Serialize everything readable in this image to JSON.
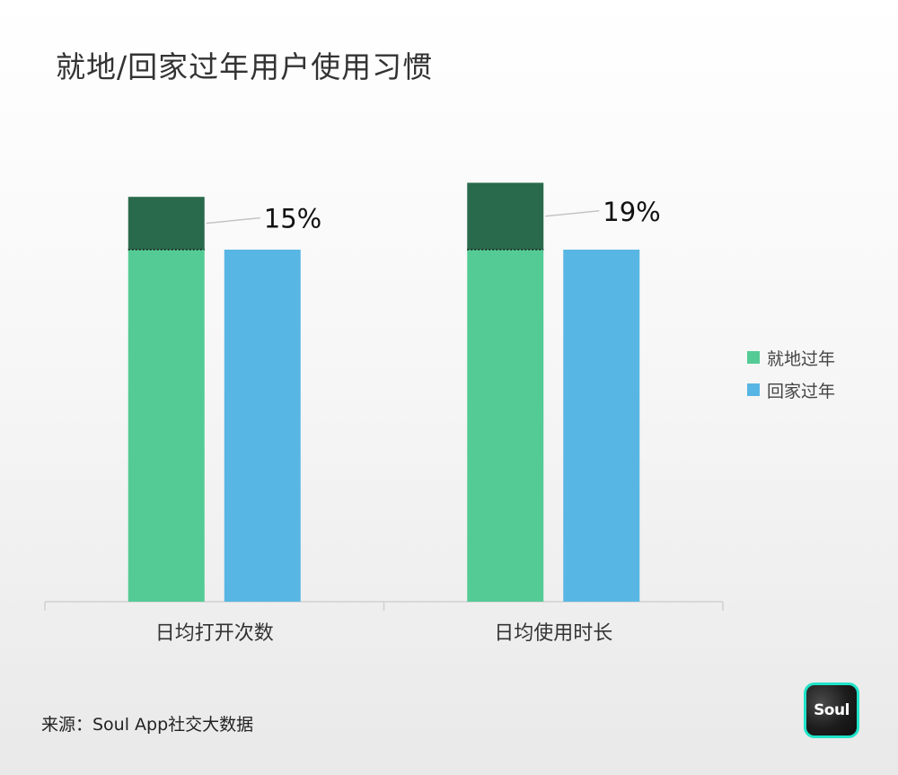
{
  "title": "就地/回家过年用户使用习惯",
  "chart_data": {
    "type": "bar",
    "categories": [
      "日均打开次数",
      "日均使用时长"
    ],
    "series": [
      {
        "name": "就地过年",
        "values": [
          115,
          119
        ],
        "color": "#54cb95"
      },
      {
        "name": "回家过年",
        "values": [
          100,
          100
        ],
        "color": "#58b6e4"
      }
    ],
    "increase_highlight_color": "#2a6a4c",
    "annotations": [
      "15%",
      "19%"
    ],
    "ylim": [
      0,
      130
    ],
    "grid": false,
    "legend_position": "right"
  },
  "legend": [
    {
      "label": "就地过年",
      "color": "#54cb95"
    },
    {
      "label": "回家过年",
      "color": "#58b6e4"
    }
  ],
  "source": "来源：Soul App社交大数据",
  "logo": {
    "text": "Soul",
    "accent": "#1fe3c8"
  }
}
